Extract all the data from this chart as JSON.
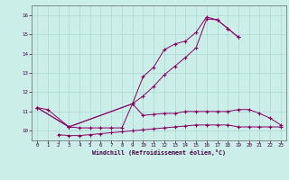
{
  "xlabel": "Windchill (Refroidissement éolien,°C)",
  "bg_color": "#cceee8",
  "grid_color": "#aad8d2",
  "line_color": "#880066",
  "xlim": [
    -0.5,
    23.5
  ],
  "ylim": [
    9.5,
    16.5
  ],
  "yticks": [
    10,
    11,
    12,
    13,
    14,
    15,
    16
  ],
  "xticks": [
    0,
    1,
    2,
    3,
    4,
    5,
    6,
    7,
    8,
    9,
    10,
    11,
    12,
    13,
    14,
    15,
    16,
    17,
    18,
    19,
    20,
    21,
    22,
    23
  ],
  "series1_x": [
    0,
    1,
    3,
    4,
    5,
    6,
    7,
    8,
    9,
    10,
    11,
    12,
    13,
    14,
    15,
    16,
    17,
    18,
    19,
    20,
    21,
    22,
    23
  ],
  "series1_y": [
    11.2,
    11.1,
    10.2,
    10.15,
    10.15,
    10.15,
    10.15,
    10.15,
    11.4,
    10.8,
    10.85,
    10.9,
    10.9,
    11.0,
    11.0,
    11.0,
    11.0,
    11.0,
    11.1,
    11.1,
    10.9,
    10.65,
    10.3
  ],
  "series2_x": [
    2,
    3,
    4,
    5,
    6,
    7,
    8,
    9,
    10,
    11,
    12,
    13,
    14,
    15,
    16,
    17,
    18,
    19,
    20,
    21,
    22,
    23
  ],
  "series2_y": [
    9.8,
    9.75,
    9.75,
    9.8,
    9.85,
    9.9,
    9.95,
    10.0,
    10.05,
    10.1,
    10.15,
    10.2,
    10.25,
    10.3,
    10.3,
    10.3,
    10.3,
    10.2,
    10.2,
    10.2,
    10.2,
    10.2
  ],
  "series3_x": [
    0,
    3,
    9,
    10,
    11,
    12,
    13,
    14,
    15,
    16,
    17,
    18,
    19
  ],
  "series3_y": [
    11.2,
    10.2,
    11.4,
    12.8,
    13.3,
    14.2,
    14.5,
    14.65,
    15.1,
    15.9,
    15.75,
    15.3,
    14.85
  ],
  "series4_x": [
    0,
    3,
    9,
    10,
    11,
    12,
    13,
    14,
    15,
    16,
    17,
    18,
    19
  ],
  "series4_y": [
    11.2,
    10.2,
    11.4,
    11.8,
    12.3,
    12.9,
    13.35,
    13.8,
    14.3,
    15.8,
    15.75,
    15.3,
    14.85
  ]
}
